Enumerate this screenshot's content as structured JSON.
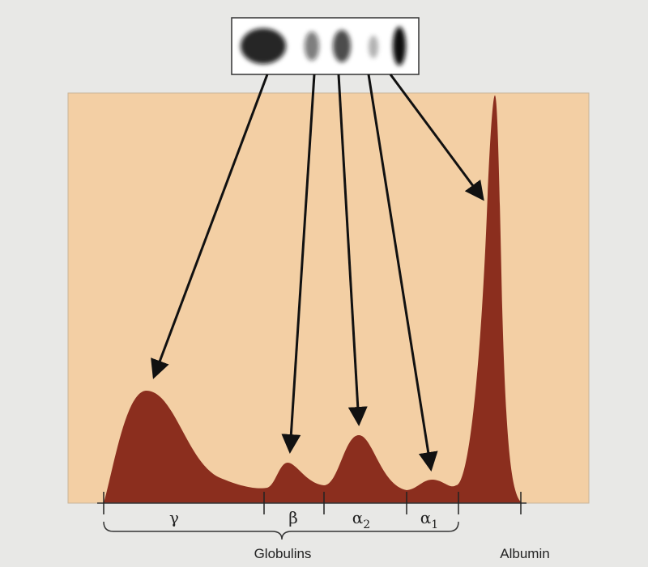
{
  "bands": [
    {
      "symbol": "γ"
    },
    {
      "symbol": "β"
    },
    {
      "symbol": "α",
      "subscript": "2"
    },
    {
      "symbol": "α",
      "subscript": "1"
    }
  ],
  "group_label": "Globulins",
  "albumin_label": "Albumin"
}
